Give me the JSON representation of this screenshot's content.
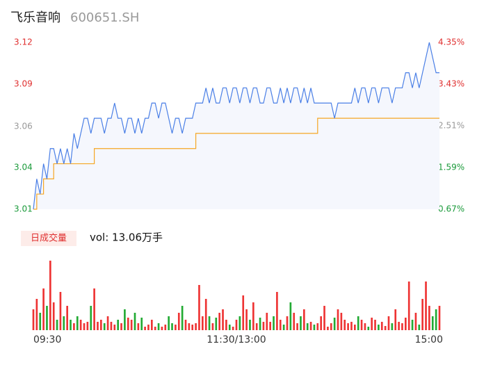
{
  "chart_data": {
    "type": "intraday",
    "title": "飞乐音响",
    "code": "600651.SH",
    "x": [
      0,
      2,
      4,
      6,
      8,
      10,
      12,
      14,
      16,
      18,
      20,
      22,
      24,
      26,
      28,
      30,
      32,
      34,
      36,
      38,
      40,
      42,
      44,
      46,
      48,
      50,
      52,
      54,
      56,
      58,
      60,
      62,
      64,
      66,
      68,
      70,
      72,
      74,
      76,
      78,
      80,
      82,
      84,
      86,
      88,
      90,
      92,
      94,
      96,
      98,
      100,
      102,
      104,
      106,
      108,
      110,
      112,
      114,
      116,
      118,
      120,
      122,
      124,
      126,
      128,
      130,
      132,
      134,
      136,
      138,
      140,
      142,
      144,
      146,
      148,
      150,
      152,
      154,
      156,
      158,
      160,
      162,
      164,
      166,
      168,
      170,
      172,
      174,
      176,
      178,
      180,
      182,
      184,
      186,
      188,
      190,
      192,
      194,
      196,
      198,
      200,
      202,
      204,
      206,
      208,
      210,
      212,
      214,
      216,
      218,
      220,
      222,
      224,
      226,
      228,
      230,
      232,
      234,
      236,
      238,
      240
    ],
    "xlim": [
      0,
      240
    ],
    "xticks": [
      {
        "value": 0,
        "label": "09:30"
      },
      {
        "value": 120,
        "label": "11:30/13:00"
      },
      {
        "value": 240,
        "label": "15:00"
      }
    ],
    "series": [
      {
        "name": "price",
        "color": "#4a7fe6",
        "values": [
          3.01,
          3.03,
          3.02,
          3.04,
          3.03,
          3.05,
          3.05,
          3.04,
          3.05,
          3.04,
          3.05,
          3.04,
          3.06,
          3.05,
          3.06,
          3.07,
          3.07,
          3.06,
          3.07,
          3.07,
          3.07,
          3.06,
          3.07,
          3.07,
          3.08,
          3.07,
          3.07,
          3.06,
          3.07,
          3.07,
          3.06,
          3.07,
          3.06,
          3.07,
          3.07,
          3.08,
          3.08,
          3.07,
          3.08,
          3.08,
          3.07,
          3.06,
          3.07,
          3.07,
          3.06,
          3.07,
          3.07,
          3.07,
          3.08,
          3.08,
          3.08,
          3.09,
          3.08,
          3.09,
          3.08,
          3.08,
          3.09,
          3.09,
          3.08,
          3.09,
          3.09,
          3.08,
          3.09,
          3.09,
          3.08,
          3.09,
          3.09,
          3.08,
          3.08,
          3.09,
          3.09,
          3.08,
          3.08,
          3.09,
          3.08,
          3.09,
          3.08,
          3.09,
          3.09,
          3.08,
          3.09,
          3.08,
          3.09,
          3.08,
          3.08,
          3.08,
          3.08,
          3.08,
          3.08,
          3.07,
          3.08,
          3.08,
          3.08,
          3.08,
          3.08,
          3.09,
          3.08,
          3.09,
          3.09,
          3.08,
          3.09,
          3.09,
          3.08,
          3.09,
          3.09,
          3.09,
          3.08,
          3.09,
          3.09,
          3.09,
          3.1,
          3.1,
          3.09,
          3.1,
          3.09,
          3.1,
          3.11,
          3.12,
          3.11,
          3.1,
          3.1
        ]
      },
      {
        "name": "average",
        "color": "#f5a623",
        "values": [
          3.01,
          3.02,
          3.02,
          3.03,
          3.03,
          3.03,
          3.04,
          3.04,
          3.04,
          3.04,
          3.04,
          3.04,
          3.04,
          3.04,
          3.04,
          3.04,
          3.04,
          3.04,
          3.05,
          3.05,
          3.05,
          3.05,
          3.05,
          3.05,
          3.05,
          3.05,
          3.05,
          3.05,
          3.05,
          3.05,
          3.05,
          3.05,
          3.05,
          3.05,
          3.05,
          3.05,
          3.05,
          3.05,
          3.05,
          3.05,
          3.05,
          3.05,
          3.05,
          3.05,
          3.05,
          3.05,
          3.05,
          3.05,
          3.06,
          3.06,
          3.06,
          3.06,
          3.06,
          3.06,
          3.06,
          3.06,
          3.06,
          3.06,
          3.06,
          3.06,
          3.06,
          3.06,
          3.06,
          3.06,
          3.06,
          3.06,
          3.06,
          3.06,
          3.06,
          3.06,
          3.06,
          3.06,
          3.06,
          3.06,
          3.06,
          3.06,
          3.06,
          3.06,
          3.06,
          3.06,
          3.06,
          3.06,
          3.06,
          3.06,
          3.07,
          3.07,
          3.07,
          3.07,
          3.07,
          3.07,
          3.07,
          3.07,
          3.07,
          3.07,
          3.07,
          3.07,
          3.07,
          3.07,
          3.07,
          3.07,
          3.07,
          3.07,
          3.07,
          3.07,
          3.07,
          3.07,
          3.07,
          3.07,
          3.07,
          3.07,
          3.07,
          3.07,
          3.07,
          3.07,
          3.07,
          3.07,
          3.07,
          3.07,
          3.07,
          3.07,
          3.07
        ]
      }
    ],
    "ylim": [
      3.01,
      3.12
    ],
    "yticks": [
      {
        "value": 3.12,
        "label": "3.12"
      },
      {
        "value": 3.0925,
        "label": "3.09"
      },
      {
        "value": 3.0645,
        "label": "3.06"
      },
      {
        "value": 3.0375,
        "label": "3.04"
      },
      {
        "value": 3.01,
        "label": "3.01"
      }
    ],
    "y2lim": [
      0.67,
      4.35
    ],
    "y2ticks": [
      {
        "value": 4.35,
        "label": "4.35%"
      },
      {
        "value": 3.43,
        "label": "3.43%"
      },
      {
        "value": 2.51,
        "label": "2.51%"
      },
      {
        "value": 1.59,
        "label": "1.59%"
      },
      {
        "value": 0.67,
        "label": "0.67%"
      }
    ],
    "tick_colors": [
      "#e03030",
      "#e03030",
      "#999999",
      "#1a9a3a",
      "#1a9a3a"
    ],
    "volume": {
      "label": "日成交量",
      "text": "vol: 13.06万手",
      "up_color": "#ee3333",
      "down_color": "#22aa33",
      "ylim": [
        0,
        100
      ],
      "values": [
        30,
        45,
        25,
        60,
        35,
        100,
        40,
        15,
        55,
        20,
        35,
        15,
        10,
        20,
        15,
        10,
        12,
        35,
        60,
        12,
        15,
        10,
        20,
        12,
        8,
        15,
        10,
        30,
        18,
        15,
        25,
        10,
        18,
        5,
        8,
        15,
        5,
        10,
        5,
        8,
        20,
        10,
        8,
        25,
        35,
        15,
        10,
        8,
        10,
        65,
        20,
        45,
        20,
        10,
        18,
        25,
        30,
        15,
        8,
        5,
        15,
        20,
        50,
        30,
        15,
        40,
        10,
        18,
        12,
        25,
        12,
        20,
        55,
        15,
        8,
        20,
        40,
        25,
        10,
        20,
        30,
        10,
        12,
        8,
        10,
        20,
        35,
        5,
        10,
        18,
        30,
        25,
        15,
        10,
        12,
        8,
        20,
        15,
        10,
        5,
        18,
        15,
        8,
        12,
        6,
        20,
        10,
        30,
        12,
        10,
        18,
        70,
        15,
        25,
        8,
        45,
        70,
        35,
        20,
        30,
        35
      ]
    }
  }
}
